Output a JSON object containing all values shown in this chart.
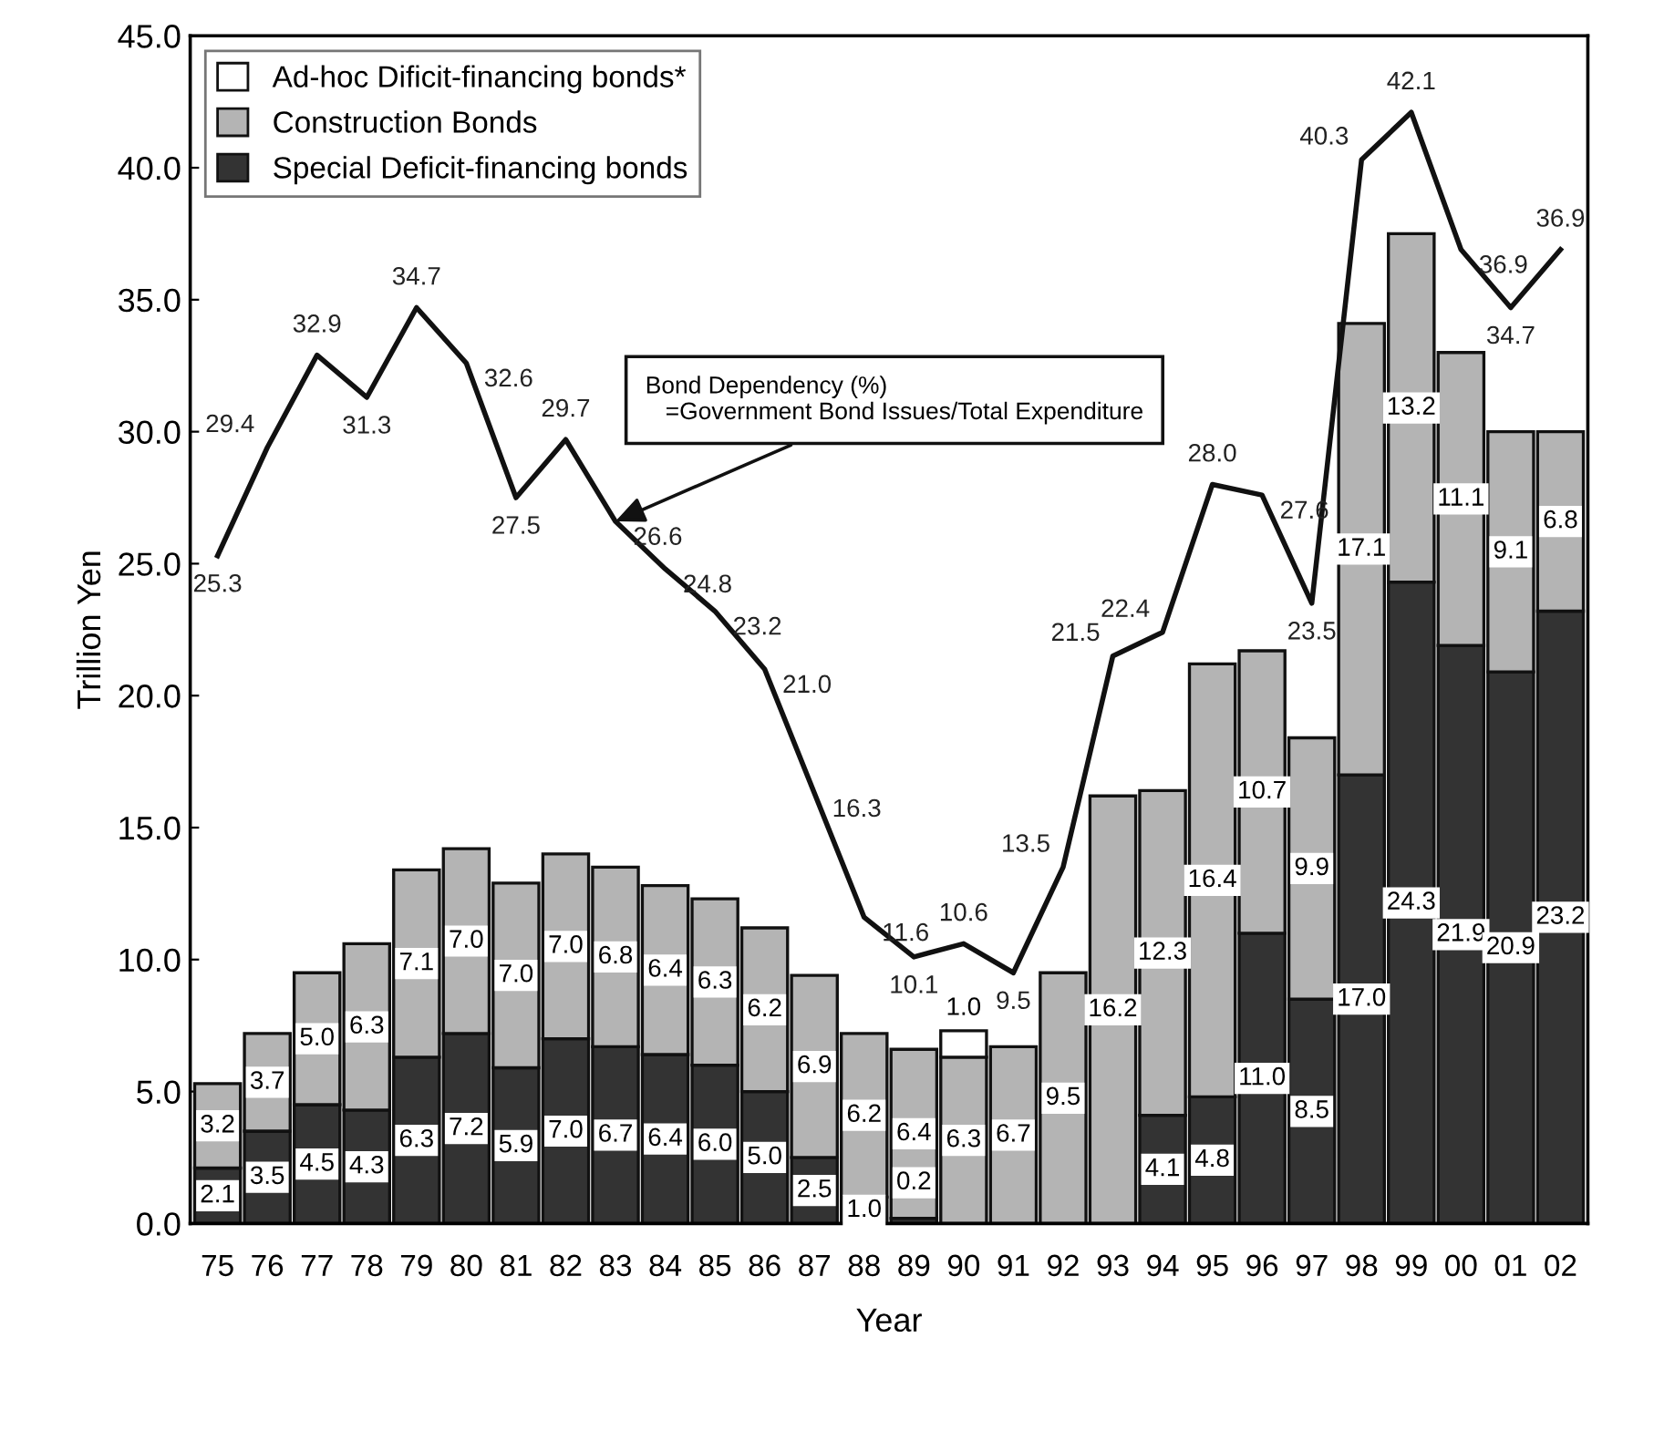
{
  "chart_data": {
    "type": "bar",
    "stacked": true,
    "xlabel": "Year",
    "ylabel": "Trillion Yen",
    "categories": [
      "75",
      "76",
      "77",
      "78",
      "79",
      "80",
      "81",
      "82",
      "83",
      "84",
      "85",
      "86",
      "87",
      "88",
      "89",
      "90",
      "91",
      "92",
      "93",
      "94",
      "95",
      "96",
      "97",
      "98",
      "99",
      "00",
      "01",
      "02"
    ],
    "ylim": [
      0,
      45
    ],
    "yticks": [
      {
        "value": 0,
        "label": "0.0"
      },
      {
        "value": 5,
        "label": "5.0"
      },
      {
        "value": 10,
        "label": "10.0"
      },
      {
        "value": 15,
        "label": "15.0"
      },
      {
        "value": 20,
        "label": "20.0"
      },
      {
        "value": 25,
        "label": "25.0"
      },
      {
        "value": 30,
        "label": "30.0"
      },
      {
        "value": 35,
        "label": "35.0"
      },
      {
        "value": 40,
        "label": "40.0"
      },
      {
        "value": 45,
        "label": "45.0"
      }
    ],
    "grid": false,
    "legend": "top left",
    "series": [
      {
        "name": "Special Deficit-financing bonds",
        "color": "#333333",
        "values": [
          2.1,
          3.5,
          4.5,
          4.3,
          6.3,
          7.2,
          5.9,
          7.0,
          6.7,
          6.4,
          6.0,
          5.0,
          2.5,
          1.0,
          0.2,
          null,
          null,
          null,
          null,
          4.1,
          4.8,
          11.0,
          8.5,
          17.0,
          24.3,
          21.9,
          20.9,
          23.2
        ],
        "value_labels": [
          "2.1",
          "3.5",
          "4.5",
          "4.3",
          "6.3",
          "7.2",
          "5.9",
          "7.0",
          "6.7",
          "6.4",
          "6.0",
          "5.0",
          "2.5",
          "1.0",
          "0.2",
          null,
          null,
          null,
          null,
          "4.1",
          "4.8",
          "11.0",
          "8.5",
          "17.0",
          "24.3",
          "21.9",
          "20.9",
          "23.2"
        ]
      },
      {
        "name": "Construction Bonds",
        "color": "#b4b4b4",
        "values": [
          3.2,
          3.7,
          5.0,
          6.3,
          7.1,
          7.0,
          7.0,
          7.0,
          6.8,
          6.4,
          6.3,
          6.2,
          6.9,
          6.2,
          6.4,
          6.3,
          6.7,
          9.5,
          16.2,
          12.3,
          16.4,
          10.7,
          9.9,
          17.1,
          13.2,
          11.1,
          9.1,
          6.8
        ],
        "value_labels": [
          "3.2",
          "3.7",
          "5.0",
          "6.3",
          "7.1",
          "7.0",
          "7.0",
          "7.0",
          "6.8",
          "6.4",
          "6.3",
          "6.2",
          "6.9",
          "6.2",
          "6.4",
          "6.3",
          "6.7",
          "9.5",
          "16.2",
          "12.3",
          "16.4",
          "10.7",
          "9.9",
          "17.1",
          "13.2",
          "11.1",
          "9.1",
          "6.8"
        ]
      },
      {
        "name": "Ad-hoc Dificit-financing bonds*",
        "color": "#ffffff",
        "values": [
          null,
          null,
          null,
          null,
          null,
          null,
          null,
          null,
          null,
          null,
          null,
          null,
          null,
          null,
          null,
          1.0,
          null,
          null,
          null,
          null,
          null,
          null,
          null,
          null,
          null,
          null,
          null,
          null
        ],
        "value_labels": [
          null,
          null,
          null,
          null,
          null,
          null,
          null,
          null,
          null,
          null,
          null,
          null,
          null,
          null,
          null,
          "1.0",
          null,
          null,
          null,
          null,
          null,
          null,
          null,
          null,
          null,
          null,
          null,
          null
        ]
      },
      {
        "type": "line",
        "color": "#111111",
        "marker": "none",
        "line_style": "solid",
        "values": [
          25.3,
          29.4,
          32.9,
          31.3,
          34.7,
          32.6,
          27.5,
          29.7,
          26.6,
          24.8,
          23.2,
          21.0,
          16.3,
          11.6,
          10.1,
          10.6,
          9.5,
          13.5,
          21.5,
          22.4,
          28.0,
          27.6,
          23.5,
          40.3,
          42.1,
          36.9,
          34.7,
          36.9
        ],
        "value_labels": [
          "25.3",
          "29.4",
          "32.9",
          "31.3",
          "34.7",
          "32.6",
          "27.5",
          "29.7",
          "26.6",
          "24.8",
          "23.2",
          "21.0",
          "16.3",
          "11.6",
          "10.1",
          "10.6",
          "9.5",
          "13.5",
          "21.5",
          "22.4",
          "28.0",
          "27.6",
          "23.5",
          "40.3",
          "42.1",
          "36.9",
          "34.7",
          "36.9"
        ]
      }
    ],
    "annotations": [
      {
        "text": "Bond Dependency (%)\n   =Government Bond Issues/Total Expenditure",
        "x": "83",
        "y": 26.6
      }
    ]
  }
}
